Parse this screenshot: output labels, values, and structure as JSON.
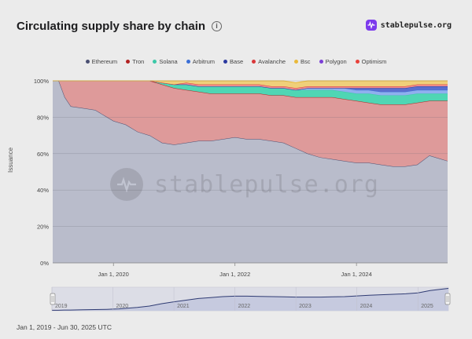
{
  "title": "Circulating supply share by chain",
  "brand": "stablepulse.org",
  "footer": "Jan 1, 2019 - Jun 30, 2025 UTC",
  "watermark": "stablepulse.org",
  "legend": [
    {
      "name": "Ethereum",
      "color": "#4a4f72"
    },
    {
      "name": "Tron",
      "color": "#b22222"
    },
    {
      "name": "Solana",
      "color": "#3cc8a8"
    },
    {
      "name": "Arbitrum",
      "color": "#3b6fd6"
    },
    {
      "name": "Base",
      "color": "#2b3aa0"
    },
    {
      "name": "Avalanche",
      "color": "#d9383a"
    },
    {
      "name": "Bsc",
      "color": "#e9b93a"
    },
    {
      "name": "Polygon",
      "color": "#7b3fd6"
    },
    {
      "name": "Optimism",
      "color": "#e8413a"
    }
  ],
  "chart_data": {
    "type": "area",
    "stacked": true,
    "percent": true,
    "ylabel": "Issuance",
    "y_ticks": [
      "0%",
      "20%",
      "40%",
      "60%",
      "80%",
      "100%"
    ],
    "x_ticks": [
      "Jan 1, 2020",
      "Jan 1, 2022",
      "Jan 1, 2024"
    ],
    "ylim": [
      0,
      100
    ],
    "xlim": [
      2019.0,
      2025.5
    ],
    "x": [
      2019.0,
      2019.1,
      2019.2,
      2019.3,
      2019.5,
      2019.7,
      2019.9,
      2020.0,
      2020.1,
      2020.2,
      2020.4,
      2020.6,
      2020.8,
      2021.0,
      2021.2,
      2021.4,
      2021.6,
      2021.8,
      2022.0,
      2022.2,
      2022.4,
      2022.6,
      2022.8,
      2023.0,
      2023.2,
      2023.4,
      2023.6,
      2023.8,
      2024.0,
      2024.2,
      2024.4,
      2024.6,
      2024.8,
      2025.0,
      2025.2,
      2025.4,
      2025.5
    ],
    "series": [
      {
        "name": "Ethereum",
        "values": [
          100,
          100,
          91,
          86,
          85,
          84,
          80,
          78,
          77,
          76,
          72,
          70,
          66,
          65,
          66,
          67,
          67,
          68,
          69,
          68,
          68,
          67,
          66,
          63,
          60,
          58,
          57,
          56,
          55,
          55,
          54,
          53,
          53,
          54,
          59,
          57,
          56
        ]
      },
      {
        "name": "Tron",
        "values": [
          0,
          0,
          9,
          14,
          15,
          16,
          20,
          22,
          23,
          24,
          28,
          30,
          32,
          31,
          29,
          27,
          26,
          25,
          24,
          25,
          25,
          25,
          26,
          28,
          31,
          33,
          34,
          34,
          34,
          33,
          33,
          34,
          34,
          34,
          30,
          32,
          33
        ]
      },
      {
        "name": "Solana",
        "values": [
          0,
          0,
          0,
          0,
          0,
          0,
          0,
          0,
          0,
          0,
          0,
          0,
          1,
          2,
          3,
          3,
          4,
          4,
          4,
          4,
          4,
          4,
          4,
          4,
          4,
          4,
          4,
          4,
          4,
          5,
          5,
          5,
          5,
          5,
          4,
          4,
          4
        ]
      },
      {
        "name": "Arbitrum",
        "values": [
          0,
          0,
          0,
          0,
          0,
          0,
          0,
          0,
          0,
          0,
          0,
          0,
          0,
          0,
          0,
          0,
          0,
          0,
          0,
          0,
          0,
          0,
          0,
          0,
          1,
          1,
          1,
          2,
          2,
          2,
          2,
          2,
          2,
          2,
          2,
          2,
          2
        ]
      },
      {
        "name": "Base",
        "values": [
          0,
          0,
          0,
          0,
          0,
          0,
          0,
          0,
          0,
          0,
          0,
          0,
          0,
          0,
          0,
          0,
          0,
          0,
          0,
          0,
          0,
          0,
          0,
          0,
          0,
          0,
          0,
          0,
          1,
          1,
          2,
          2,
          2,
          2,
          2,
          2,
          2
        ]
      },
      {
        "name": "Avalanche",
        "values": [
          0,
          0,
          0,
          0,
          0,
          0,
          0,
          0,
          0,
          0,
          0,
          0,
          0,
          0,
          1,
          1,
          1,
          1,
          1,
          1,
          1,
          1,
          1,
          1,
          1,
          1,
          1,
          1,
          1,
          1,
          1,
          1,
          1,
          1,
          1,
          1,
          1
        ]
      },
      {
        "name": "Bsc",
        "values": [
          0,
          0,
          0,
          0,
          0,
          0,
          0,
          0,
          0,
          0,
          0,
          0,
          1,
          2,
          1,
          2,
          2,
          2,
          2,
          2,
          2,
          3,
          3,
          3,
          3,
          3,
          3,
          3,
          3,
          3,
          3,
          3,
          3,
          2,
          2,
          2,
          2
        ]
      },
      {
        "name": "Polygon",
        "values": [
          0,
          0,
          0,
          0,
          0,
          0,
          0,
          0,
          0,
          0,
          0,
          0,
          0,
          0,
          0,
          0,
          0,
          0,
          0,
          0,
          0,
          0,
          0,
          0,
          0,
          0,
          0,
          0,
          0,
          0,
          0,
          0,
          0,
          0,
          0,
          0,
          0
        ]
      },
      {
        "name": "Optimism",
        "values": [
          0,
          0,
          0,
          0,
          0,
          0,
          0,
          0,
          0,
          0,
          0,
          0,
          0,
          0,
          0,
          0,
          0,
          0,
          0,
          0,
          0,
          0,
          0,
          0,
          0,
          0,
          0,
          0,
          0,
          0,
          0,
          0,
          0,
          0,
          0,
          0,
          0
        ]
      }
    ],
    "navigator": {
      "years": [
        "2019",
        "2020",
        "2021",
        "2022",
        "2023",
        "2024",
        "2025"
      ]
    }
  }
}
